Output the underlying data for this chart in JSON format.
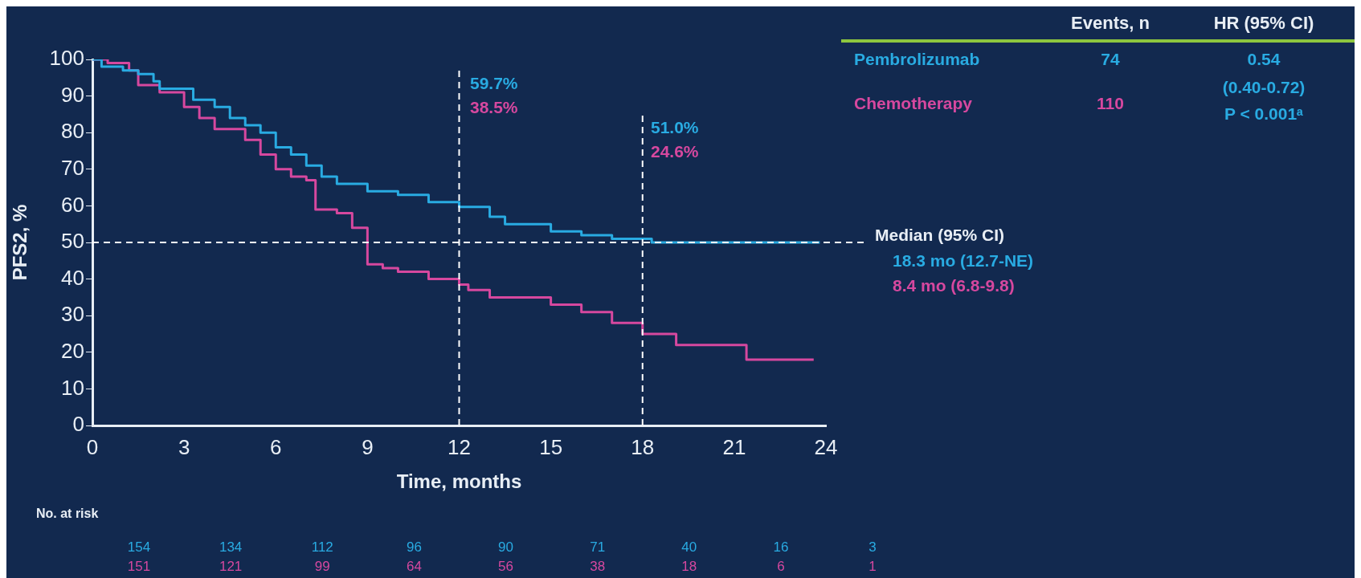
{
  "chart_data": {
    "type": "step",
    "xlabel": "Time, months",
    "ylabel": "PFS2, %",
    "xlim": [
      0,
      24
    ],
    "xticks": [
      0,
      3,
      6,
      9,
      12,
      15,
      18,
      21,
      24
    ],
    "ylim": [
      0,
      100
    ],
    "yticks": [
      0,
      10,
      20,
      30,
      40,
      50,
      60,
      70,
      80,
      90,
      100
    ],
    "grid": false,
    "legend": false,
    "marker": "none",
    "series": [
      {
        "name": "Pembrolizumab",
        "color": "#29abe2",
        "x": [
          0,
          0.3,
          1,
          1.5,
          2,
          2.2,
          3,
          3.3,
          4,
          4.5,
          5,
          5.5,
          6,
          6.5,
          7,
          7.5,
          8,
          9,
          10,
          11,
          12,
          13,
          13.5,
          14.5,
          15,
          16,
          17,
          18,
          18.3,
          23.8
        ],
        "values": [
          100,
          98,
          97,
          96,
          94,
          92,
          92,
          89,
          87,
          84,
          82,
          80,
          76,
          74,
          71,
          68,
          66,
          64,
          63,
          61,
          59.7,
          57,
          55,
          55,
          53,
          52,
          51,
          51,
          50,
          50
        ]
      },
      {
        "name": "Chemotherapy",
        "color": "#d6489f",
        "x": [
          0,
          0.5,
          1.2,
          1.5,
          2.2,
          3,
          3.5,
          4,
          5,
          5.5,
          6,
          6.5,
          7,
          7.3,
          8,
          8.5,
          9,
          9.5,
          10,
          11,
          12,
          12.3,
          13,
          14.5,
          15,
          16,
          17,
          18,
          19,
          19.1,
          21.3,
          21.4,
          23.6
        ],
        "values": [
          100,
          99,
          97,
          93,
          91,
          87,
          84,
          81,
          78,
          74,
          70,
          68,
          67,
          59,
          58,
          54,
          44,
          43,
          42,
          40,
          38.5,
          37,
          35,
          35,
          33,
          31,
          28,
          25,
          25,
          22,
          22,
          18,
          18
        ]
      }
    ],
    "ref_lines": [
      {
        "axis": "y",
        "value": 50,
        "color": "#ffffff",
        "line_style": "dashed"
      },
      {
        "axis": "x",
        "value": 12,
        "color": "#ffffff",
        "line_style": "dashed"
      },
      {
        "axis": "x",
        "value": 18,
        "color": "#ffffff",
        "line_style": "dashed"
      }
    ],
    "annotations": [
      "59.7%",
      "38.5%",
      "51.0%",
      "24.6%",
      "Median (95% CI)",
      "18.3 mo (12.7-NE)",
      "8.4 mo (6.8-9.8)",
      "Events, n",
      "HR (95% CI)",
      "74",
      "0.54",
      "(0.40-0.72)",
      "110",
      "P < 0.001ᵃ",
      "No. at risk",
      "154 134 112 96 90 71 40 16 3",
      "151 121 99 64 56 38 18 6 1"
    ]
  }
}
